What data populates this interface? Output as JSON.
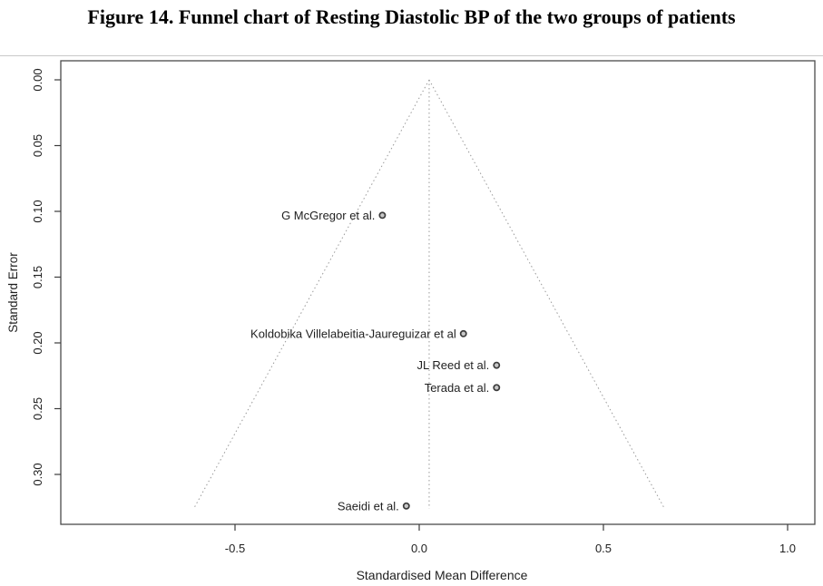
{
  "title": "Figure 14. Funnel chart of Resting Diastolic BP of the two groups of patients",
  "colors": {
    "plot_border": "#4a4a4a",
    "tick": "#3c3c3c",
    "funnel_line": "#9a9a9a",
    "point_fill": "#c8c8c8",
    "point_stroke": "#3c3c3c",
    "text": "#1f1f1f",
    "top_rule": "#c9c9c9"
  },
  "chart_data": {
    "type": "scatter",
    "subtype": "funnel-plot",
    "title": "Figure 14. Funnel chart of Resting Diastolic BP of the two groups of patients",
    "xlabel": "Standardised Mean Difference",
    "ylabel": "Standard Error",
    "x_axis": {
      "ticks": [
        {
          "value": -0.5,
          "label": "-0.5"
        },
        {
          "value": 0.0,
          "label": "0.0"
        },
        {
          "value": 0.5,
          "label": "0.5"
        },
        {
          "value": 1.0,
          "label": "1.0"
        }
      ],
      "range": [
        -0.97,
        1.07
      ]
    },
    "y_axis": {
      "ticks": [
        {
          "value": 0.0,
          "label": "0.00"
        },
        {
          "value": 0.05,
          "label": "0.05"
        },
        {
          "value": 0.1,
          "label": "0.10"
        },
        {
          "value": 0.15,
          "label": "0.15"
        },
        {
          "value": 0.2,
          "label": "0.20"
        },
        {
          "value": 0.25,
          "label": "0.25"
        },
        {
          "value": 0.3,
          "label": "0.30"
        }
      ],
      "range": [
        0.0,
        0.34
      ],
      "inverted": true
    },
    "funnel": {
      "estimate": 0.027,
      "max_se": 0.326,
      "ci_multiplier": 1.96,
      "line_style": "dotted"
    },
    "points": [
      {
        "label": "G McGregor et al.",
        "x": -0.1,
        "se": 0.103
      },
      {
        "label": "Koldobika Villelabeitia-Jaureguizar et al",
        "x": 0.12,
        "se": 0.193
      },
      {
        "label": "JL Reed et al.",
        "x": 0.21,
        "se": 0.217
      },
      {
        "label": "Terada et al.",
        "x": 0.21,
        "se": 0.234
      },
      {
        "label": "Saeidi et al.",
        "x": -0.035,
        "se": 0.324
      }
    ],
    "legend": null,
    "grid": false
  }
}
